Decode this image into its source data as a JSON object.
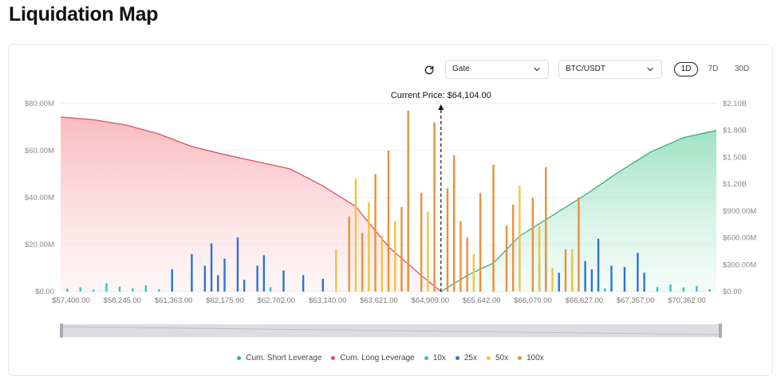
{
  "page": {
    "title": "Liquidation Map"
  },
  "controls": {
    "exchange": "Gate",
    "pair": "BTC/USDT",
    "tabs": [
      "1D",
      "7D",
      "30D"
    ],
    "active_tab": "1D"
  },
  "colors": {
    "short": "#2fb37a",
    "long": "#e0505a",
    "lev10": "#2ec4c9",
    "lev25": "#2b73d6",
    "lev50": "#f2c43d",
    "lev100": "#ec8f3a"
  },
  "chart_data": {
    "type": "bar",
    "annotation": "Current Price: $64,104.00",
    "current_price": 64104,
    "x_ticks": [
      "$57,400.00",
      "$58,245.00",
      "$61,363.00",
      "$62,175.00",
      "$62,702.00",
      "$63,140.00",
      "$63,621.00",
      "$64,909.00",
      "$65,642.00",
      "$66,070.00",
      "$66,627.00",
      "$67,357.00",
      "$70,362.00"
    ],
    "y_left_ticks": [
      "$0.00",
      "$20.00M",
      "$40.00M",
      "$60.00M",
      "$80.00M"
    ],
    "y_left_lim": [
      0,
      80000000
    ],
    "y_right_ticks": [
      "$0.00",
      "$300.00M",
      "$600.00M",
      "$900.00M",
      "$1.20B",
      "$1.50B",
      "$1.80B",
      "$2.10B"
    ],
    "y_right_lim": [
      0,
      2100000000
    ],
    "legend": [
      "Cum. Short Leverage",
      "Cum. Long Leverage",
      "10x",
      "25x",
      "50x",
      "100x"
    ],
    "legend_position": "bottom",
    "grid": true,
    "cum_long": [
      [
        0,
        1.95
      ],
      [
        0.05,
        1.92
      ],
      [
        0.1,
        1.86
      ],
      [
        0.15,
        1.76
      ],
      [
        0.2,
        1.62
      ],
      [
        0.25,
        1.53
      ],
      [
        0.3,
        1.45
      ],
      [
        0.35,
        1.37
      ],
      [
        0.4,
        1.18
      ],
      [
        0.45,
        0.95
      ],
      [
        0.5,
        0.5
      ],
      [
        0.55,
        0.18
      ],
      [
        0.58,
        0.0
      ]
    ],
    "cum_short": [
      [
        0.58,
        0.0
      ],
      [
        0.62,
        0.18
      ],
      [
        0.66,
        0.32
      ],
      [
        0.7,
        0.62
      ],
      [
        0.75,
        0.85
      ],
      [
        0.8,
        1.08
      ],
      [
        0.85,
        1.33
      ],
      [
        0.9,
        1.56
      ],
      [
        0.95,
        1.72
      ],
      [
        1.0,
        1.8
      ]
    ],
    "bars": {
      "lev10": [
        [
          0.01,
          1.2
        ],
        [
          0.03,
          1.8
        ],
        [
          0.05,
          0.8
        ],
        [
          0.07,
          3.5
        ],
        [
          0.09,
          2.1
        ],
        [
          0.11,
          1.4
        ],
        [
          0.13,
          2.6
        ],
        [
          0.15,
          1.0
        ],
        [
          0.17,
          3.2
        ],
        [
          0.2,
          1.5
        ],
        [
          0.24,
          2.4
        ],
        [
          0.28,
          1.1
        ],
        [
          0.32,
          1.9
        ],
        [
          0.83,
          1.3
        ],
        [
          0.86,
          2.2
        ],
        [
          0.89,
          1.2
        ],
        [
          0.91,
          2.0
        ],
        [
          0.93,
          3.1
        ],
        [
          0.95,
          1.8
        ],
        [
          0.97,
          2.4
        ],
        [
          0.99,
          1.0
        ]
      ],
      "lev25": [
        [
          0.17,
          9.5
        ],
        [
          0.2,
          16.0
        ],
        [
          0.22,
          11.0
        ],
        [
          0.23,
          20.5
        ],
        [
          0.24,
          7.0
        ],
        [
          0.25,
          14.0
        ],
        [
          0.27,
          23.0
        ],
        [
          0.28,
          5.0
        ],
        [
          0.3,
          11.0
        ],
        [
          0.31,
          15.5
        ],
        [
          0.34,
          9.0
        ],
        [
          0.37,
          7.0
        ],
        [
          0.4,
          5.5
        ],
        [
          0.73,
          12.0
        ],
        [
          0.74,
          17.0
        ],
        [
          0.76,
          8.0
        ],
        [
          0.78,
          15.0
        ],
        [
          0.8,
          13.0
        ],
        [
          0.81,
          9.5
        ],
        [
          0.82,
          22.5
        ],
        [
          0.84,
          11.0
        ],
        [
          0.86,
          10.5
        ],
        [
          0.88,
          16.5
        ],
        [
          0.89,
          8.0
        ]
      ],
      "lev50": [
        [
          0.42,
          18.0
        ],
        [
          0.45,
          48.0
        ],
        [
          0.47,
          38.0
        ],
        [
          0.49,
          24.0
        ],
        [
          0.51,
          30.0
        ],
        [
          0.53,
          42.0
        ],
        [
          0.56,
          34.0
        ],
        [
          0.6,
          50.0
        ],
        [
          0.63,
          16.0
        ],
        [
          0.66,
          20.0
        ],
        [
          0.7,
          45.0
        ],
        [
          0.73,
          28.0
        ],
        [
          0.75,
          10.0
        ],
        [
          0.78,
          18.0
        ]
      ],
      "lev100": [
        [
          0.44,
          32.0
        ],
        [
          0.46,
          25.0
        ],
        [
          0.48,
          50.0
        ],
        [
          0.5,
          60.0
        ],
        [
          0.52,
          36.0
        ],
        [
          0.53,
          77.0
        ],
        [
          0.55,
          42.0
        ],
        [
          0.57,
          72.0
        ],
        [
          0.59,
          44.0
        ],
        [
          0.6,
          58.0
        ],
        [
          0.61,
          30.0
        ],
        [
          0.62,
          23.0
        ],
        [
          0.64,
          42.0
        ],
        [
          0.66,
          54.0
        ],
        [
          0.68,
          28.0
        ],
        [
          0.69,
          37.0
        ],
        [
          0.72,
          40.0
        ],
        [
          0.74,
          53.0
        ],
        [
          0.77,
          18.0
        ],
        [
          0.79,
          40.0
        ]
      ]
    }
  }
}
